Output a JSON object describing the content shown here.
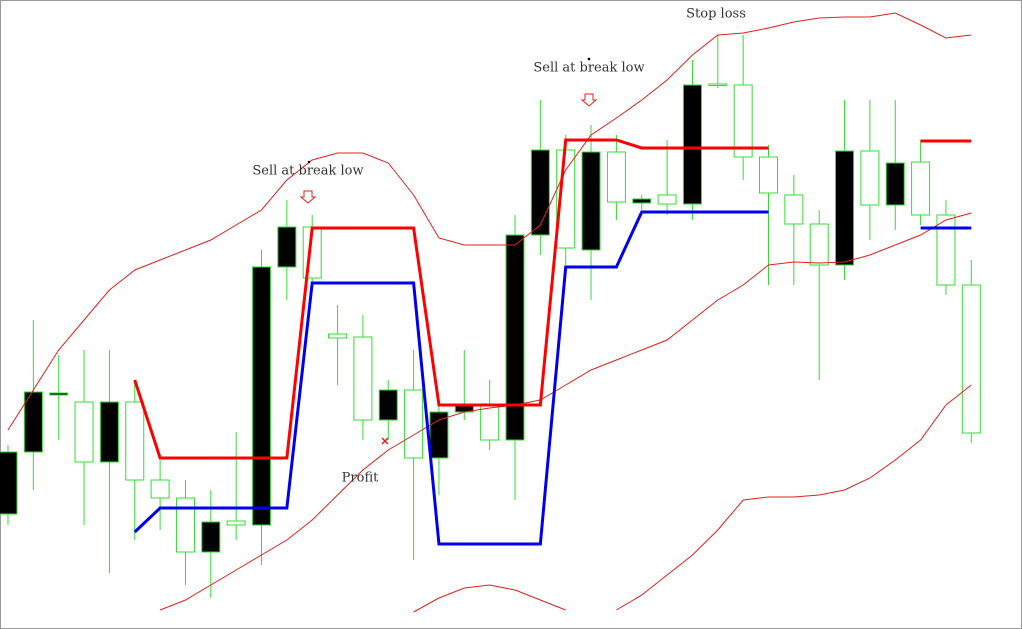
{
  "chart_data": {
    "type": "candlestick",
    "open": [
      177,
      237,
      236,
      167,
      227,
      149,
      131,
      77,
      107,
      104,
      362,
      402,
      351,
      291,
      209,
      239,
      171,
      217,
      224,
      189,
      394,
      479,
      381,
      477,
      427,
      430,
      425,
      544,
      544,
      472,
      436,
      405,
      364,
      478,
      424,
      466,
      414,
      344,
      196
    ],
    "high": [
      184,
      309,
      274,
      279,
      279,
      249,
      169,
      149,
      139,
      197,
      379,
      429,
      414,
      324,
      314,
      249,
      279,
      229,
      279,
      249,
      414,
      529,
      494,
      504,
      494,
      434,
      489,
      569,
      594,
      594,
      484,
      454,
      419,
      529,
      529,
      529,
      489,
      429,
      369
    ],
    "low": [
      104,
      139,
      189,
      104,
      56,
      89,
      99,
      44,
      31,
      89,
      64,
      329,
      344,
      244,
      189,
      189,
      69,
      134,
      209,
      179,
      129,
      374,
      364,
      329,
      409,
      419,
      414,
      409,
      541,
      449,
      344,
      344,
      249,
      349,
      389,
      399,
      404,
      334,
      186
    ],
    "close": [
      115,
      177,
      234,
      227,
      167,
      227,
      149,
      131,
      77,
      108,
      104,
      362,
      402,
      295,
      292,
      209,
      239,
      171,
      217,
      224,
      189,
      394,
      479,
      379,
      477,
      426,
      434,
      425,
      545,
      544,
      472,
      434,
      405,
      364,
      478,
      424,
      467,
      414,
      344
    ],
    "up_color": "#ffffff",
    "down_color": "#000000",
    "wick_color": "#33dd33",
    "ylim": [
      0,
      629
    ],
    "lines": [
      {
        "color": "#e02020",
        "width": 1,
        "values": [
          199,
          239,
          279,
          309,
          339,
          359,
          369,
          379,
          389,
          404,
          419,
          449,
          469,
          476,
          476,
          466,
          434,
          391,
          384,
          384,
          384,
          404,
          459,
          494,
          511,
          529,
          549,
          574,
          594,
          596,
          601,
          607,
          611,
          612,
          612,
          616,
          604,
          591,
          594
        ]
      },
      {
        "color": "#e02020",
        "width": 1,
        "values": [
          null,
          null,
          null,
          null,
          null,
          null,
          19,
          29,
          44,
          59,
          74,
          89,
          109,
          134,
          159,
          179,
          194,
          209,
          217,
          221,
          224,
          229,
          244,
          259,
          269,
          279,
          289,
          309,
          329,
          344,
          364,
          367,
          366,
          367,
          374,
          384,
          394,
          409,
          416
        ]
      },
      {
        "color": "#e02020",
        "width": 1,
        "values": [
          null,
          null,
          null,
          null,
          null,
          null,
          null,
          null,
          null,
          null,
          null,
          null,
          null,
          null,
          null,
          null,
          17,
          31,
          41,
          44,
          39,
          29,
          19,
          null,
          19,
          34,
          54,
          74,
          99,
          129,
          132,
          132,
          134,
          139,
          151,
          169,
          189,
          224,
          244
        ]
      },
      {
        "color": "#ff0000",
        "width": 3,
        "values": [
          null,
          null,
          null,
          null,
          null,
          249,
          171,
          171,
          171,
          171,
          171,
          171,
          401,
          401,
          401,
          401,
          401,
          224,
          224,
          224,
          224,
          224,
          489,
          489,
          489,
          481,
          481,
          481,
          481,
          481,
          481,
          null,
          null,
          null,
          null,
          null,
          488,
          488,
          488
        ]
      },
      {
        "color": "#0000ee",
        "width": 3,
        "values": [
          null,
          null,
          null,
          null,
          null,
          97,
          121,
          121,
          121,
          121,
          121,
          121,
          346,
          346,
          346,
          346,
          346,
          85,
          85,
          85,
          85,
          85,
          362,
          362,
          362,
          417,
          417,
          417,
          417,
          417,
          417,
          null,
          null,
          null,
          null,
          null,
          401,
          401,
          401
        ]
      }
    ],
    "annotations": [
      "Sell at break low",
      "Sell at break low",
      "Stop loss",
      "Profit"
    ]
  }
}
